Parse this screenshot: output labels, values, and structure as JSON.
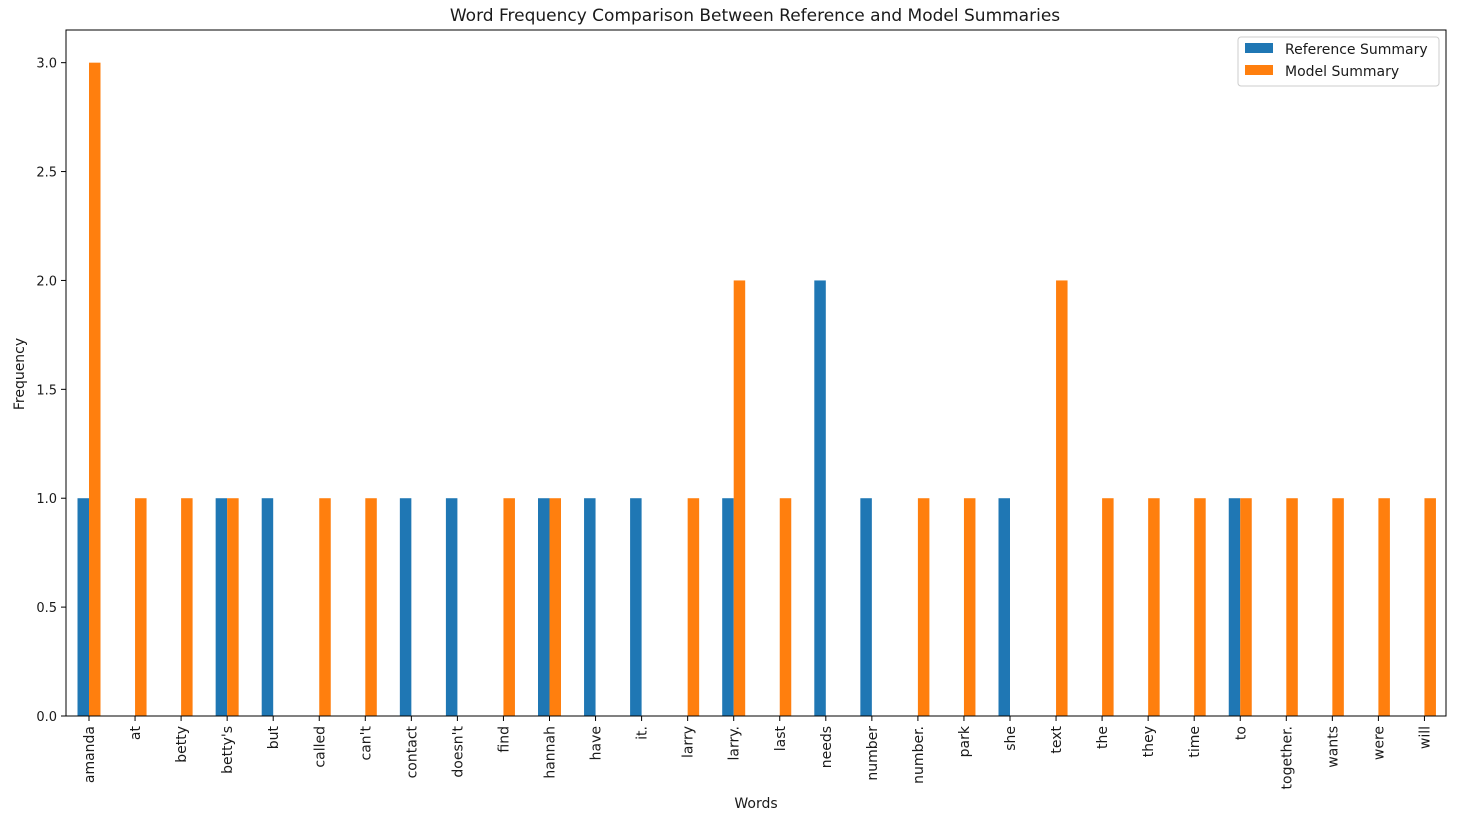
{
  "chart_data": {
    "type": "bar",
    "title": "Word Frequency Comparison Between Reference and Model Summaries",
    "xlabel": "Words",
    "ylabel": "Frequency",
    "ylim": [
      0,
      3.15
    ],
    "yticks": [
      "0.0",
      "0.5",
      "1.0",
      "1.5",
      "2.0",
      "2.5",
      "3.0"
    ],
    "grid": false,
    "legend_position": "top-right",
    "categories": [
      "amanda",
      "at",
      "betty",
      "betty's",
      "but",
      "called",
      "can't",
      "contact",
      "doesn't",
      "find",
      "hannah",
      "have",
      "it.",
      "larry",
      "larry.",
      "last",
      "needs",
      "number",
      "number.",
      "park",
      "she",
      "text",
      "the",
      "they",
      "time",
      "to",
      "together.",
      "wants",
      "were",
      "will"
    ],
    "series": [
      {
        "name": "Reference Summary",
        "color": "#1f77b4",
        "values": [
          1,
          0,
          0,
          1,
          1,
          0,
          0,
          1,
          1,
          0,
          1,
          1,
          1,
          0,
          1,
          0,
          2,
          1,
          0,
          0,
          1,
          0,
          0,
          0,
          0,
          1,
          0,
          0,
          0,
          0
        ]
      },
      {
        "name": "Model Summary",
        "color": "#ff7f0e",
        "values": [
          3,
          1,
          1,
          1,
          0,
          1,
          1,
          0,
          0,
          1,
          1,
          0,
          0,
          1,
          2,
          1,
          0,
          0,
          1,
          1,
          0,
          2,
          1,
          1,
          1,
          1,
          1,
          1,
          1,
          1
        ]
      }
    ]
  }
}
